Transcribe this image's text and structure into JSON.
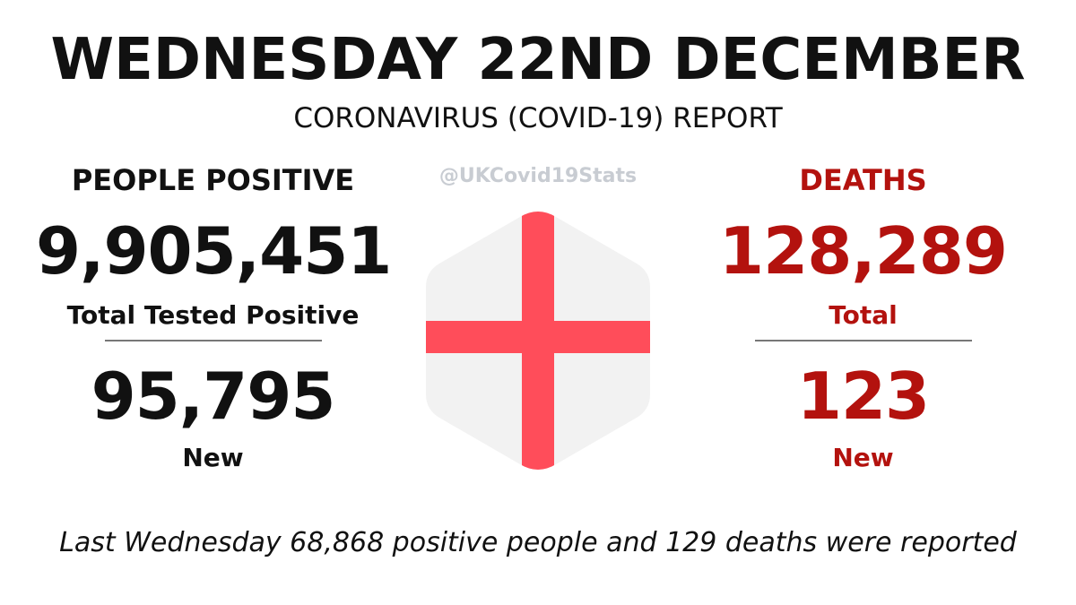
{
  "header": {
    "title": "WEDNESDAY 22ND DECEMBER",
    "subtitle": "CORONAVIRUS (COVID-19) REPORT"
  },
  "handle": "@UKCovid19Stats",
  "positive": {
    "heading": "PEOPLE POSITIVE",
    "total_value": "9,905,451",
    "total_label": "Total Tested Positive",
    "new_value": "95,795",
    "new_label": "New"
  },
  "deaths": {
    "heading": "DEATHS",
    "total_value": "128,289",
    "total_label": "Total",
    "new_value": "123",
    "new_label": "New"
  },
  "footer": {
    "text": "Last Wednesday 68,868 positive people and 129 deaths were reported"
  },
  "colors": {
    "text": "#111111",
    "deaths": "#b3120e",
    "flag_cross": "#ff4d5a",
    "flag_field": "#f2f2f2",
    "handle": "#c8ccd2",
    "divider": "#777777"
  },
  "icons": {
    "flag": "england-flag-hexagon-icon"
  }
}
